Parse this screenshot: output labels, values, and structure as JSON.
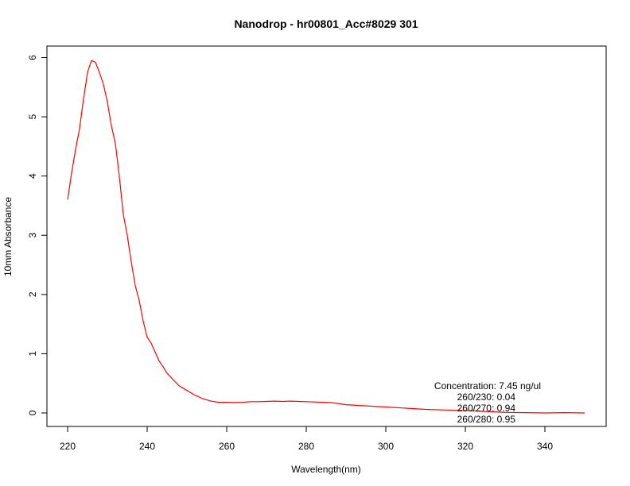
{
  "chart_data": {
    "type": "line",
    "title": "Nanodrop - hr00801_Acc#8029 301",
    "xlabel": "Wavelength(nm)",
    "ylabel": "10mm Absorbance",
    "xlim": [
      220,
      350
    ],
    "ylim": [
      0,
      6
    ],
    "x_ticks": [
      220,
      240,
      260,
      280,
      300,
      320,
      340
    ],
    "y_ticks": [
      0,
      1,
      2,
      3,
      4,
      5,
      6
    ],
    "grid": false,
    "legend": "none",
    "line_color": "#ff0000",
    "annotations": [
      "Concentration: 7.45 ng/ul",
      "260/230: 0.04",
      "260/270: 0.94",
      "260/280: 0.95"
    ],
    "series": [
      {
        "x": [
          220,
          221,
          222,
          223,
          224,
          225,
          226,
          227,
          228,
          229,
          230,
          231,
          232,
          233,
          234,
          235,
          236,
          237,
          238,
          239,
          240,
          241,
          242,
          243,
          244,
          245,
          246,
          247,
          248,
          249,
          250,
          252,
          254,
          256,
          258,
          260,
          262,
          264,
          266,
          268,
          270,
          272,
          274,
          276,
          278,
          280,
          282,
          284,
          286,
          288,
          290,
          295,
          300,
          305,
          310,
          315,
          320,
          325,
          330,
          335,
          340,
          345,
          350
        ],
        "values": [
          3.6,
          4.05,
          4.45,
          4.8,
          5.3,
          5.75,
          5.95,
          5.92,
          5.75,
          5.55,
          5.25,
          4.85,
          4.55,
          4.0,
          3.35,
          3.0,
          2.55,
          2.15,
          1.9,
          1.55,
          1.28,
          1.18,
          1.03,
          0.88,
          0.78,
          0.67,
          0.6,
          0.53,
          0.46,
          0.42,
          0.38,
          0.3,
          0.24,
          0.2,
          0.18,
          0.18,
          0.175,
          0.18,
          0.19,
          0.19,
          0.195,
          0.2,
          0.195,
          0.2,
          0.195,
          0.19,
          0.185,
          0.18,
          0.175,
          0.16,
          0.14,
          0.12,
          0.1,
          0.08,
          0.06,
          0.05,
          0.04,
          0.025,
          0.01,
          0.005,
          0.0,
          0.005,
          0.0
        ]
      }
    ]
  }
}
